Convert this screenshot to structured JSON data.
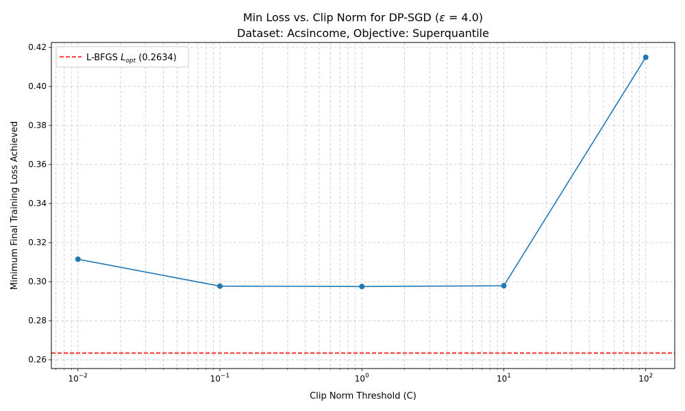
{
  "chart_data": {
    "type": "line",
    "title_line1_pre": "Min Loss vs. Clip Norm for DP-SGD (",
    "title_line1_eps": "ε",
    "title_line1_post": " = 4.0)",
    "title_line2": "Dataset: Acsincome, Objective: Superquantile",
    "xlabel": "Clip Norm Threshold (C)",
    "ylabel": "Minimum Final Training Loss Achieved",
    "x_scale": "log",
    "xlim": [
      0.0065,
      160
    ],
    "ylim": [
      0.2555,
      0.4225
    ],
    "grid": true,
    "grid_minor_x": true,
    "legend_placement": "upper-left",
    "x_ticks": [
      {
        "value": 0.01,
        "base": "10",
        "exp": "−2"
      },
      {
        "value": 0.1,
        "base": "10",
        "exp": "−1"
      },
      {
        "value": 1,
        "base": "10",
        "exp": "0"
      },
      {
        "value": 10,
        "base": "10",
        "exp": "1"
      },
      {
        "value": 100,
        "base": "10",
        "exp": "2"
      }
    ],
    "y_ticks": [
      {
        "value": 0.26,
        "label": "0.26"
      },
      {
        "value": 0.28,
        "label": "0.28"
      },
      {
        "value": 0.3,
        "label": "0.30"
      },
      {
        "value": 0.32,
        "label": "0.32"
      },
      {
        "value": 0.34,
        "label": "0.34"
      },
      {
        "value": 0.36,
        "label": "0.36"
      },
      {
        "value": 0.38,
        "label": "0.38"
      },
      {
        "value": 0.4,
        "label": "0.40"
      },
      {
        "value": 0.42,
        "label": "0.42"
      }
    ],
    "series": [
      {
        "color": "#1f77b4",
        "x": [
          0.01,
          0.1,
          1,
          10,
          100
        ],
        "y": [
          0.3115,
          0.2977,
          0.2975,
          0.2979,
          0.4149
        ]
      }
    ],
    "reference_line": {
      "y": 0.2634,
      "color": "#ff0000",
      "style": "dashed",
      "legend_pre": "L-BFGS ",
      "legend_L": "L",
      "legend_sub": "opt",
      "legend_post": " (0.2634)"
    }
  }
}
